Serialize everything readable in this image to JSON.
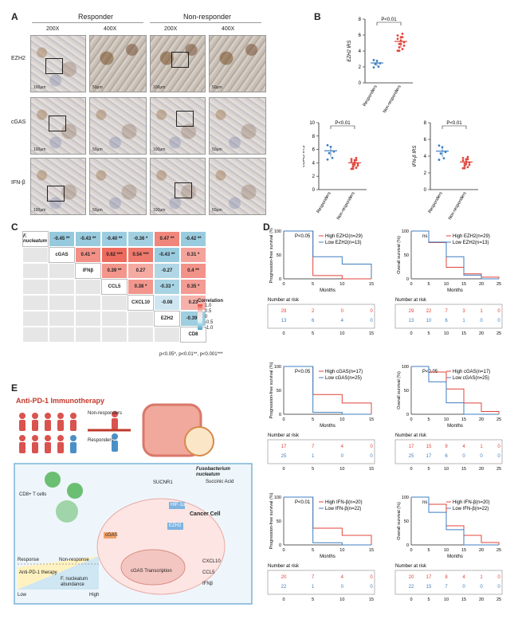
{
  "panels": {
    "A": "A",
    "B": "B",
    "C": "C",
    "D": "D",
    "E": "E"
  },
  "panelA": {
    "groups": [
      "Responder",
      "Non-responder"
    ],
    "mags": [
      "200X",
      "400X",
      "200X",
      "400X"
    ],
    "rows": [
      "EZH2",
      "cGAS",
      "IFN-β"
    ],
    "scale_200": "100μm",
    "scale_400": "50μm"
  },
  "panelB": {
    "charts": [
      {
        "ylabel": "EZH2 IRS",
        "p": "P<0.01",
        "ylim": [
          0,
          8
        ],
        "ticks": [
          "0",
          "2",
          "4",
          "6",
          "8"
        ],
        "cats": [
          "Responders",
          "Non-responders"
        ],
        "means": [
          2.5,
          5.2
        ]
      },
      {
        "ylabel": "cGAS IRS",
        "p": "P<0.01",
        "ylim": [
          0,
          10
        ],
        "ticks": [
          "0",
          "2",
          "4",
          "6",
          "8",
          "10"
        ],
        "cats": [
          "Responders",
          "Non-responders"
        ],
        "means": [
          5.8,
          4.0
        ]
      },
      {
        "ylabel": "IFN-β IRS",
        "p": "P<0.01",
        "ylim": [
          0,
          8
        ],
        "ticks": [
          "0",
          "2",
          "4",
          "6",
          "8"
        ],
        "cats": [
          "Responders",
          "Non-responders"
        ],
        "means": [
          4.6,
          3.3
        ]
      }
    ]
  },
  "panelC": {
    "labels": [
      "F. nucleatum",
      "cGAS",
      "IFNβ",
      "CCL5",
      "CXCL10",
      "EZH2",
      "CD8"
    ],
    "values": [
      [
        "-0.45 **",
        "-0.43 **",
        "-0.40 **",
        "-0.36 *",
        "0.47 **",
        "-0.42 **"
      ],
      [
        "0.41 **",
        "0.62 ***",
        "0.54 ***",
        "-0.43 **",
        "0.31 *"
      ],
      [
        "0.39 **",
        "0.27",
        "-0.27",
        "0.4 **"
      ],
      [
        "0.38 *",
        "-0.33 *",
        "0.35 *"
      ],
      [
        "-0.08",
        "0.23"
      ],
      [
        "-0.39 *"
      ]
    ],
    "legend_title": "Correlation",
    "legend_ticks": [
      "1.0",
      "0.5",
      "0",
      "-0.5",
      "-1.0"
    ],
    "footnote": "p<0.05*, p<0.01**, p<0.001***"
  },
  "panelD": {
    "plots": [
      {
        "ylabel": "Progression-free survival (%)",
        "p": "P<0.05",
        "hi": "High EZH2(n=29)",
        "lo": "Low EZH2(n=13)",
        "xticks": [
          "0",
          "5",
          "10",
          "15"
        ],
        "risk_hi": [
          "29",
          "2",
          "0",
          "0"
        ],
        "risk_lo": [
          "13",
          "6",
          "4",
          "0"
        ]
      },
      {
        "ylabel": "Overall survival (%)",
        "p": "ns",
        "hi": "High EZH2(n=29)",
        "lo": "Low EZH2(n=13)",
        "xticks": [
          "0",
          "5",
          "10",
          "15",
          "20",
          "25"
        ],
        "risk_hi": [
          "29",
          "22",
          "7",
          "3",
          "1",
          "0"
        ],
        "risk_lo": [
          "13",
          "10",
          "6",
          "1",
          "0",
          "0"
        ]
      },
      {
        "ylabel": "Progression-free survival (%)",
        "p": "P<0.05",
        "hi": "High cGAS(n=17)",
        "lo": "Low cGAS(n=25)",
        "xticks": [
          "0",
          "5",
          "10",
          "15"
        ],
        "risk_hi": [
          "17",
          "7",
          "4",
          "0"
        ],
        "risk_lo": [
          "25",
          "1",
          "0",
          "0"
        ]
      },
      {
        "ylabel": "Overall survival (%)",
        "p": "P<0.05",
        "hi": "High cGAS(n=17)",
        "lo": "Low cGAS(n=25)",
        "xticks": [
          "0",
          "5",
          "10",
          "15",
          "20",
          "25"
        ],
        "risk_hi": [
          "17",
          "15",
          "9",
          "4",
          "1",
          "0"
        ],
        "risk_lo": [
          "25",
          "17",
          "6",
          "0",
          "0",
          "0"
        ]
      },
      {
        "ylabel": "Progression-free survival (%)",
        "p": "P<0.01",
        "hi": "High IFN-β(n=20)",
        "lo": "Low IFN-β(n=22)",
        "xticks": [
          "0",
          "5",
          "10",
          "15"
        ],
        "risk_hi": [
          "20",
          "7",
          "4",
          "0"
        ],
        "risk_lo": [
          "22",
          "1",
          "0",
          "0"
        ]
      },
      {
        "ylabel": "Overall survival (%)",
        "p": "ns",
        "hi": "High IFN-β(n=20)",
        "lo": "Low IFN-β(n=22)",
        "xticks": [
          "0",
          "5",
          "10",
          "15",
          "20",
          "25"
        ],
        "risk_hi": [
          "20",
          "17",
          "8",
          "4",
          "1",
          "0"
        ],
        "risk_lo": [
          "22",
          "15",
          "7",
          "0",
          "0",
          "0"
        ]
      }
    ],
    "xlabel": "Months",
    "risk_title": "Number at risk",
    "yticks": [
      "0",
      "50",
      "100"
    ]
  },
  "panelE": {
    "title": "Anti-PD-1 Immunotherapy",
    "non": "Non-responders",
    "resp": "Responders",
    "cd8": "CD8+ T cells",
    "fn": "Fusobacterium nucleatum",
    "succ": "Succinic Acid",
    "cancer": "Cancer Cell",
    "sucnr": "SUCNR1",
    "hif": "HIF-1α",
    "ezh2": "EZH2",
    "cgas_tx": "cGAS Transcription",
    "ifnb_box": "Anti-PD-1 therapy",
    "fn_ab": "F. nucleatum abundance",
    "low": "Low",
    "high": "High",
    "response": "Response",
    "nonresponse": "Non-response",
    "cxcl10": "CXCL10",
    "ccl5": "CCL5",
    "ifnb": "IFNβ",
    "cgas": "cGAS"
  },
  "colors": {
    "red": "#e0443a",
    "blue": "#3f7fc0",
    "pink": "#f08a8a",
    "teal": "#5aa9c9"
  }
}
